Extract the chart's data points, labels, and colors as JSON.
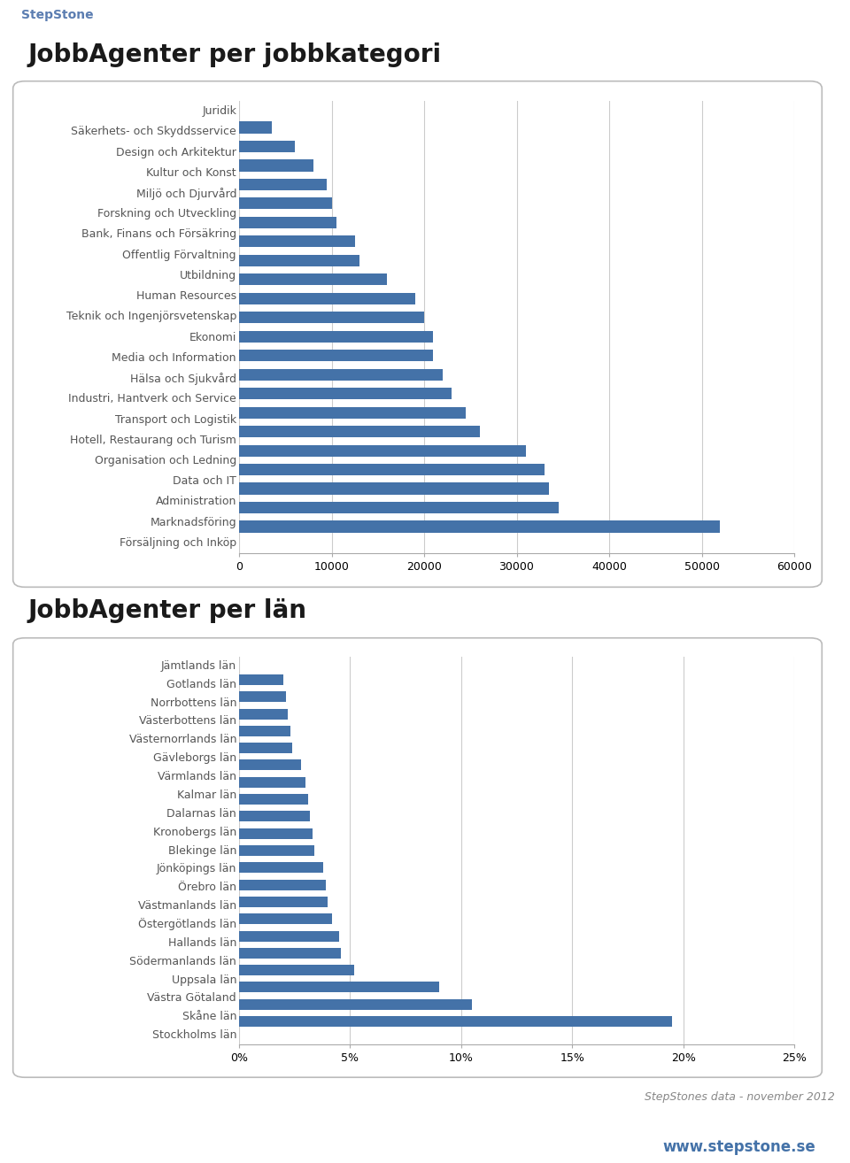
{
  "chart1_title": "JobbAgenter per jobbkategori",
  "chart1_categories": [
    "Juridik",
    "Säkerhets- och Skyddsservice",
    "Design och Arkitektur",
    "Kultur och Konst",
    "Miljö och Djurvård",
    "Forskning och Utveckling",
    "Bank, Finans och Försäkring",
    "Offentlig Förvaltning",
    "Utbildning",
    "Human Resources",
    "Teknik och Ingenjörsvetenskap",
    "Ekonomi",
    "Media och Information",
    "Hälsa och Sjukvård",
    "Industri, Hantverk och Service",
    "Transport och Logistik",
    "Hotell, Restaurang och Turism",
    "Organisation och Ledning",
    "Data och IT",
    "Administration",
    "Marknadsföring",
    "Försäljning och Inköp"
  ],
  "chart1_values": [
    3500,
    6000,
    8000,
    9500,
    10000,
    10500,
    12500,
    13000,
    16000,
    19000,
    20000,
    21000,
    21000,
    22000,
    23000,
    24500,
    26000,
    31000,
    33000,
    33500,
    34500,
    52000
  ],
  "chart1_xlim": [
    0,
    60000
  ],
  "chart1_xticks": [
    0,
    10000,
    20000,
    30000,
    40000,
    50000,
    60000
  ],
  "chart2_title": "JobbAgenter per län",
  "chart2_categories": [
    "Jämtlands län",
    "Gotlands län",
    "Norrbottens län",
    "Västerbottens län",
    "Västernorrlands län",
    "Gävleborgs län",
    "Värmlands län",
    "Kalmar län",
    "Dalarnas län",
    "Kronobergs län",
    "Blekinge län",
    "Jönköpings län",
    "Örebro län",
    "Västmanlands län",
    "Östergötlands län",
    "Hallands län",
    "Södermanlands län",
    "Uppsala län",
    "Västra Götaland",
    "Skåne län",
    "Stockholms län"
  ],
  "chart2_values": [
    2.0,
    2.1,
    2.2,
    2.3,
    2.4,
    2.8,
    3.0,
    3.1,
    3.2,
    3.3,
    3.4,
    3.8,
    3.9,
    4.0,
    4.2,
    4.5,
    4.6,
    5.2,
    9.0,
    10.5,
    19.5
  ],
  "chart2_xlim": [
    0,
    25
  ],
  "chart2_xticks": [
    0,
    5,
    10,
    15,
    20,
    25
  ],
  "chart2_xticklabels": [
    "0%",
    "5%",
    "10%",
    "15%",
    "20%",
    "25%"
  ],
  "bar_color": "#4472A8",
  "bg_color": "#FFFFFF",
  "header_bg": "#C5D5E8",
  "header_text_color": "#5B7DB1",
  "page_bg": "#DCE9F5",
  "title_fontsize": 20,
  "label_fontsize": 9,
  "tick_fontsize": 9,
  "footer_text": "StepStones data - november 2012",
  "footer_url": "www.stepstone.se",
  "stepstone_blue": "#4472A8"
}
